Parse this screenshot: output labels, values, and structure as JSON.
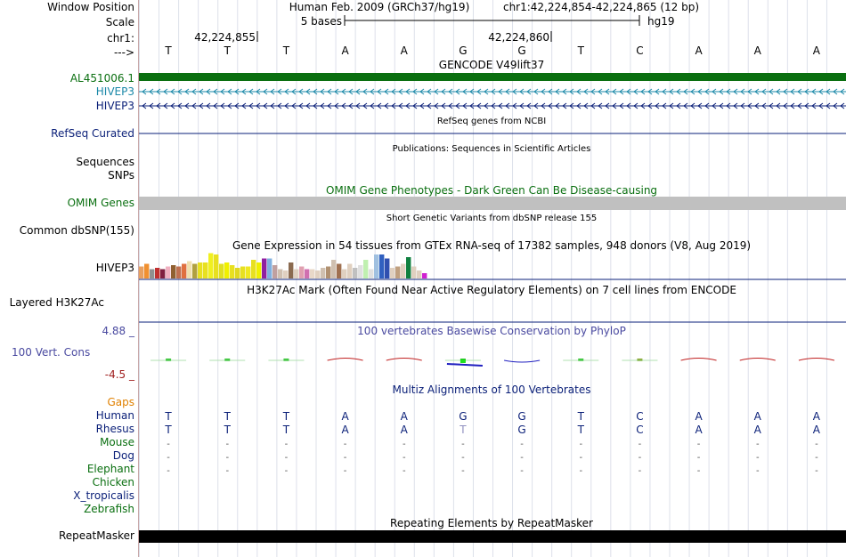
{
  "header": {
    "window_position_label": "Window Position",
    "scale_label": "Scale",
    "chrom_label": "chr1:",
    "strand_label": "--->",
    "assembly": "Human Feb. 2009 (GRCh37/hg19)",
    "position": "chr1:42,224,854-42,224,865 (12 bp)",
    "scale_text": "5 bases",
    "scale_db": "hg19",
    "coord1": "42,224,855",
    "coord2": "42,224,860"
  },
  "bases": [
    "T",
    "T",
    "T",
    "A",
    "A",
    "G",
    "G",
    "T",
    "C",
    "A",
    "A",
    "A"
  ],
  "gencode": {
    "title": "GENCODE V49lift37",
    "tracks": [
      {
        "name": "AL451006.1",
        "color": "#0a6f10"
      },
      {
        "name": "HIVEP3",
        "color": "#1a88a8"
      },
      {
        "name": "HIVEP3",
        "color": "#0a1f78"
      }
    ]
  },
  "refseq": {
    "title": "RefSeq genes from NCBI",
    "label": "RefSeq Curated",
    "color": "#0a1f78"
  },
  "publications": {
    "title": "Publications: Sequences in Scientific Articles",
    "labels": [
      "Sequences",
      "SNPs"
    ]
  },
  "omim": {
    "title": "OMIM Gene Phenotypes - Dark Green Can Be Disease-causing",
    "label": "OMIM Genes",
    "color": "#0a6f10"
  },
  "dbsnp": {
    "title": "Short Genetic Variants from dbSNP release 155",
    "label": "Common dbSNP(155)"
  },
  "gtex": {
    "title": "Gene Expression in 54 tissues from GTEx RNA-seq of 17382 samples, 948 donors (V8, Aug 2019)",
    "label": "HIVEP3",
    "bars": [
      {
        "v": 0.45,
        "c": "#e8a060"
      },
      {
        "v": 0.55,
        "c": "#f09030"
      },
      {
        "v": 0.35,
        "c": "#909090"
      },
      {
        "v": 0.4,
        "c": "#c03030"
      },
      {
        "v": 0.35,
        "c": "#802040"
      },
      {
        "v": 0.45,
        "c": "#f0b0c0"
      },
      {
        "v": 0.5,
        "c": "#906030"
      },
      {
        "v": 0.45,
        "c": "#c07050"
      },
      {
        "v": 0.55,
        "c": "#e07040"
      },
      {
        "v": 0.65,
        "c": "#f0e0b0"
      },
      {
        "v": 0.55,
        "c": "#b0a040"
      },
      {
        "v": 0.6,
        "c": "#e8e020"
      },
      {
        "v": 0.6,
        "c": "#e8e020"
      },
      {
        "v": 0.95,
        "c": "#f0f020"
      },
      {
        "v": 0.9,
        "c": "#e8e020"
      },
      {
        "v": 0.55,
        "c": "#e0e020"
      },
      {
        "v": 0.6,
        "c": "#f0f000"
      },
      {
        "v": 0.5,
        "c": "#e8e020"
      },
      {
        "v": 0.4,
        "c": "#e0d820"
      },
      {
        "v": 0.45,
        "c": "#e8e020"
      },
      {
        "v": 0.45,
        "c": "#f0e820"
      },
      {
        "v": 0.7,
        "c": "#e8e020"
      },
      {
        "v": 0.6,
        "c": "#f0f000"
      },
      {
        "v": 0.75,
        "c": "#9020a0"
      },
      {
        "v": 0.75,
        "c": "#80b0e0"
      },
      {
        "v": 0.5,
        "c": "#c0a0a0"
      },
      {
        "v": 0.35,
        "c": "#d0c0b0"
      },
      {
        "v": 0.3,
        "c": "#e0d0c0"
      },
      {
        "v": 0.6,
        "c": "#8a6a50"
      },
      {
        "v": 0.35,
        "c": "#e0d0c0"
      },
      {
        "v": 0.45,
        "c": "#e0a0b0"
      },
      {
        "v": 0.35,
        "c": "#d070b0"
      },
      {
        "v": 0.35,
        "c": "#e8d8c8"
      },
      {
        "v": 0.3,
        "c": "#e0d0c0"
      },
      {
        "v": 0.4,
        "c": "#d0c0b0"
      },
      {
        "v": 0.45,
        "c": "#b09070"
      },
      {
        "v": 0.7,
        "c": "#d0c0b0"
      },
      {
        "v": 0.55,
        "c": "#a07050"
      },
      {
        "v": 0.35,
        "c": "#e0d0c0"
      },
      {
        "v": 0.55,
        "c": "#e0d0c0"
      },
      {
        "v": 0.4,
        "c": "#c0c0c0"
      },
      {
        "v": 0.5,
        "c": "#e0e0e0"
      },
      {
        "v": 0.7,
        "c": "#c0f0b0"
      },
      {
        "v": 0.35,
        "c": "#e0e0e0"
      },
      {
        "v": 0.9,
        "c": "#a0c0e0"
      },
      {
        "v": 0.9,
        "c": "#3060c0"
      },
      {
        "v": 0.75,
        "c": "#3050b0"
      },
      {
        "v": 0.4,
        "c": "#e0d0c0"
      },
      {
        "v": 0.45,
        "c": "#c0a080"
      },
      {
        "v": 0.55,
        "c": "#e0d0c0"
      },
      {
        "v": 0.8,
        "c": "#108040"
      },
      {
        "v": 0.45,
        "c": "#e0d0c0"
      },
      {
        "v": 0.3,
        "c": "#e0d0c0"
      },
      {
        "v": 0.2,
        "c": "#d020d0"
      }
    ]
  },
  "h3k27ac": {
    "title": "H3K27Ac Mark (Often Found Near Active Regulatory Elements) on 7 cell lines from ENCODE",
    "label": "Layered H3K27Ac"
  },
  "phylop": {
    "title": "100 vertebrates Basewise Conservation by PhyloP",
    "label": "100 Vert. Cons",
    "max": "4.88 _",
    "min": "-4.5 _"
  },
  "multiz": {
    "title": "Multiz Alignments of 100 Vertebrates",
    "gaps_label": "Gaps",
    "species": [
      {
        "name": "Human",
        "color": "#0a1f78"
      },
      {
        "name": "Rhesus",
        "color": "#0a1f78"
      },
      {
        "name": "Mouse",
        "color": "#0a6f10"
      },
      {
        "name": "Dog",
        "color": "#0a1f78"
      },
      {
        "name": "Elephant",
        "color": "#0a6f10"
      },
      {
        "name": "Chicken",
        "color": "#0a6f10"
      },
      {
        "name": "X_tropicalis",
        "color": "#0a1f78"
      },
      {
        "name": "Zebrafish",
        "color": "#0a6f10"
      }
    ],
    "rhesus_bases": [
      "T",
      "T",
      "T",
      "A",
      "A",
      "T",
      "G",
      "T",
      "C",
      "A",
      "A",
      "A"
    ],
    "dash": "-"
  },
  "repeatmasker": {
    "title": "Repeating Elements by RepeatMasker",
    "label": "RepeatMasker"
  }
}
